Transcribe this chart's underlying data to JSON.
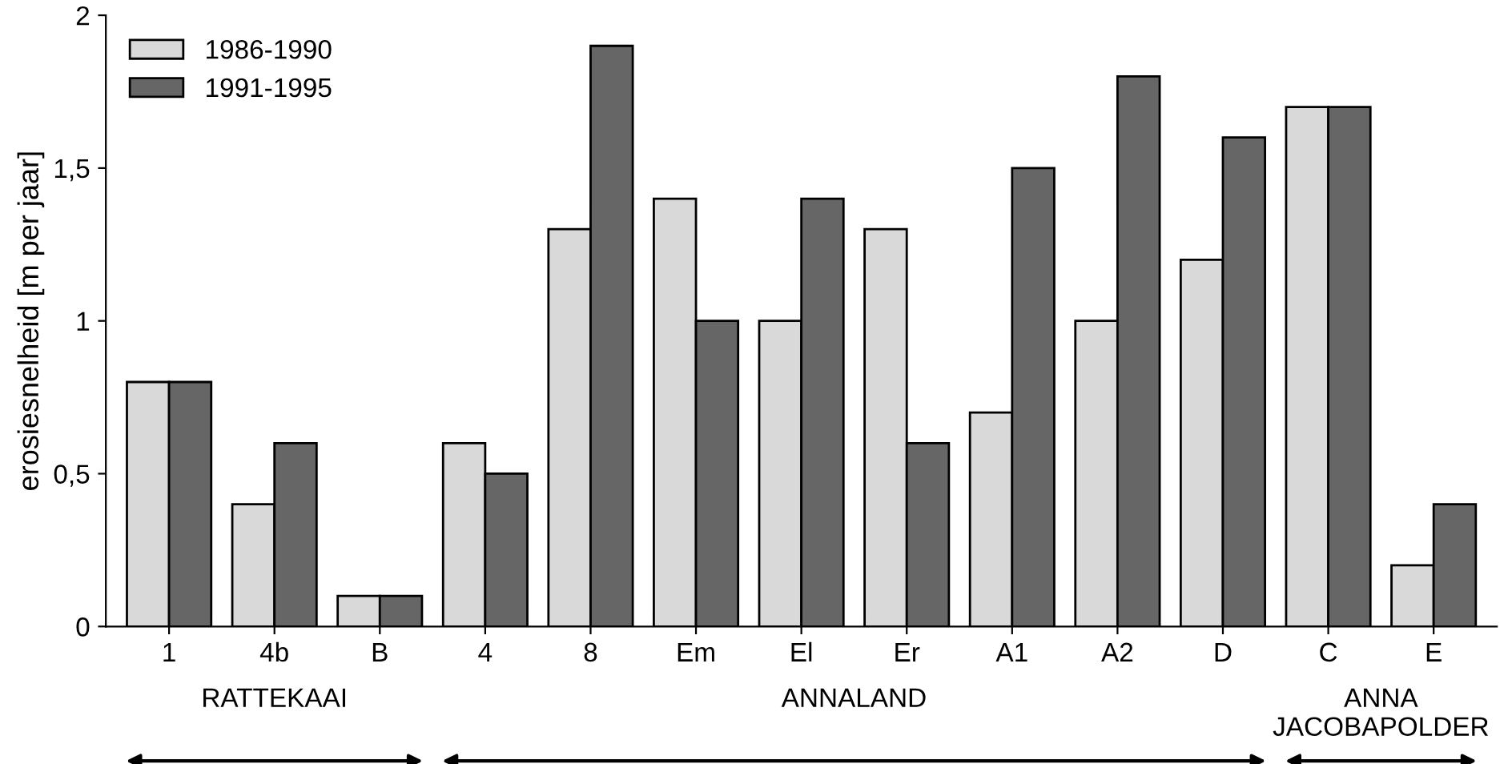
{
  "chart_data": {
    "type": "bar",
    "ylabel": "erosiesnelheid [m per jaar]",
    "categories": [
      "1",
      "4b",
      "B",
      "4",
      "8",
      "Em",
      "El",
      "Er",
      "A1",
      "A2",
      "D",
      "C",
      "E"
    ],
    "series": [
      {
        "name": "1986-1990",
        "color": "#d9d9d9",
        "values": [
          0.8,
          0.4,
          0.1,
          0.6,
          1.3,
          1.4,
          1.0,
          1.3,
          0.7,
          1.0,
          1.2,
          1.7,
          0.2
        ]
      },
      {
        "name": "1991-1995",
        "color": "#666666",
        "values": [
          0.8,
          0.6,
          0.1,
          0.5,
          1.9,
          1.0,
          1.4,
          0.6,
          1.5,
          1.8,
          1.6,
          1.7,
          0.4
        ]
      }
    ],
    "ylim": [
      0,
      2
    ],
    "yticks": [
      0,
      {
        "value": 0.5,
        "label": "0,5"
      },
      1,
      {
        "value": 1.5,
        "label": "1,5"
      },
      2
    ],
    "legend": "top left",
    "grid": false,
    "annotations": [
      "RATTEKAAI",
      "ANNALAND",
      "ANNA\nJACOBAPOLDER"
    ]
  }
}
